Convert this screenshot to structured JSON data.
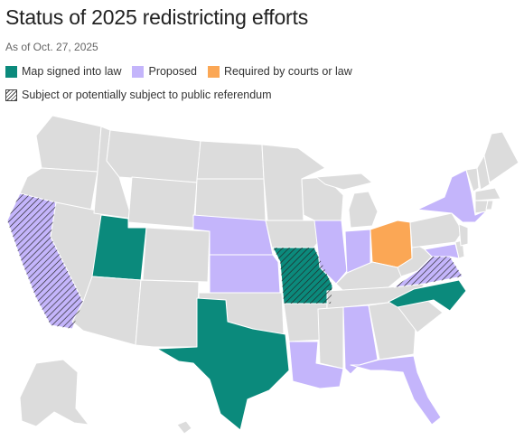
{
  "header": {
    "title": "Status of 2025 redistricting efforts",
    "subtitle": "As of Oct. 27, 2025"
  },
  "legend": {
    "signed": "Map signed into law",
    "proposed": "Proposed",
    "required": "Required by courts or law",
    "referendum": "Subject or potentially subject to public referendum"
  },
  "colors": {
    "signed": "#0b8a7c",
    "proposed": "#c4b5fb",
    "required": "#fba755",
    "default": "#dcdcdc",
    "border": "#ffffff",
    "hatch": "#222222"
  },
  "states": {
    "signed": [
      "Utah",
      "Texas",
      "Missouri",
      "North Carolina"
    ],
    "proposed": [
      "California",
      "Nebraska",
      "Kansas",
      "Illinois",
      "Indiana",
      "Louisiana",
      "Alabama",
      "Florida",
      "Virginia",
      "Maryland",
      "New York"
    ],
    "required": [
      "Ohio"
    ],
    "referendum": [
      "California",
      "Missouri",
      "Virginia"
    ]
  }
}
